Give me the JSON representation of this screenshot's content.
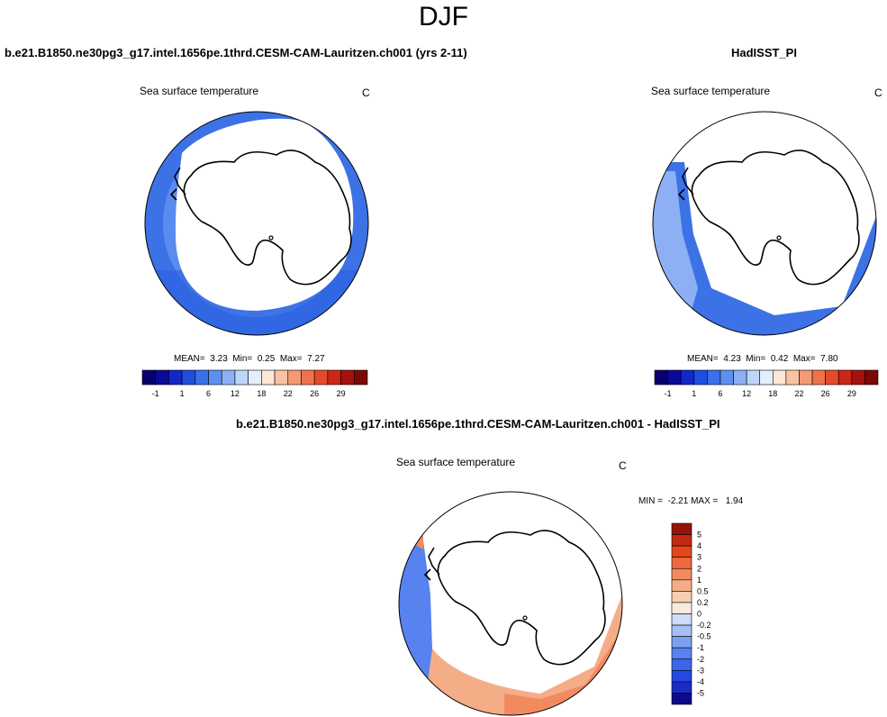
{
  "page": {
    "season": "DJF",
    "case_label": "b.e21.B1850.ne30pg3_g17.intel.1656pe.1thrd.CESM-CAM-Lauritzen.ch001 (yrs 2-11)",
    "obs_label": "HadISST_PI",
    "diff_label": "b.e21.B1850.ne30pg3_g17.intel.1656pe.1thrd.CESM-CAM-Lauritzen.ch001 - HadISST_PI"
  },
  "panels": {
    "model": {
      "variable": "Sea surface temperature",
      "units": "C",
      "stats": "MEAN=  3.23  Min=  0.25  Max=  7.27"
    },
    "obs": {
      "variable": "Sea surface temperature",
      "units": "C",
      "stats": "MEAN=  4.23  Min=  0.42  Max=  7.80"
    },
    "diff": {
      "variable": "Sea surface temperature",
      "units": "C",
      "stats": "MIN =  -2.21 MAX =   1.94"
    }
  },
  "colorbar_main": {
    "colors": [
      "#08006a",
      "#0a0a9a",
      "#1426c8",
      "#1e4fe0",
      "#3a70ea",
      "#5d8ef0",
      "#8db0f4",
      "#bed4fa",
      "#e6eefc",
      "#fde7d6",
      "#f8c3a2",
      "#f49a72",
      "#ef724d",
      "#e54a2c",
      "#cc2617",
      "#a5110c",
      "#7a0a05"
    ],
    "labels": [
      "-1",
      "1",
      "6",
      "12",
      "18",
      "22",
      "26",
      "29"
    ]
  },
  "colorbar_diff": {
    "colors": [
      "#0e0a8c",
      "#1b2bc6",
      "#2549e0",
      "#3a66ea",
      "#5782ef",
      "#7b9ff2",
      "#a4bff6",
      "#cddcf9",
      "#f8ebde",
      "#f8cdb0",
      "#f5ad88",
      "#f28a60",
      "#ec6a3c",
      "#e2481d",
      "#c52810",
      "#961307"
    ],
    "labels": [
      "5",
      "4",
      "3",
      "2",
      "1",
      "0.5",
      "0.2",
      "0",
      "-0.2",
      "-0.5",
      "-1",
      "-2",
      "-3",
      "-4",
      "-5"
    ]
  }
}
